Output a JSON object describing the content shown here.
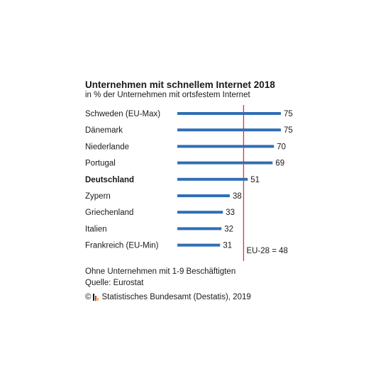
{
  "chart_data": {
    "type": "bar",
    "orientation": "horizontal",
    "title": "Unternehmen mit schnellem Internet 2018",
    "subtitle": "in % der Unternehmen mit ortsfestem Internet",
    "categories": [
      "Schweden (EU-Max)",
      "Dänemark",
      "Niederlande",
      "Portugal",
      "Deutschland",
      "Zypern",
      "Griechenland",
      "Italien",
      "Frankreich (EU-Min)"
    ],
    "values": [
      75,
      75,
      70,
      69,
      51,
      38,
      33,
      32,
      31
    ],
    "highlight_category": "Deutschland",
    "reference_line": {
      "value": 48,
      "label": "EU-28 = 48",
      "color": "#e0303c"
    },
    "bar_color": "#2e6fb5",
    "xlim": [
      0,
      75
    ],
    "grid": false,
    "legend": "none"
  },
  "footer": {
    "note": "Ohne Unternehmen mit 1-9 Beschäftigten",
    "source": "Quelle: Eurostat",
    "copyright_symbol": "©",
    "publisher": "Statistisches Bundesamt (Destatis), 2019",
    "logo_icon": "destatis-logo-icon",
    "logo_colors": [
      "#1a1a1a",
      "#e0303c",
      "#f2b600"
    ]
  }
}
